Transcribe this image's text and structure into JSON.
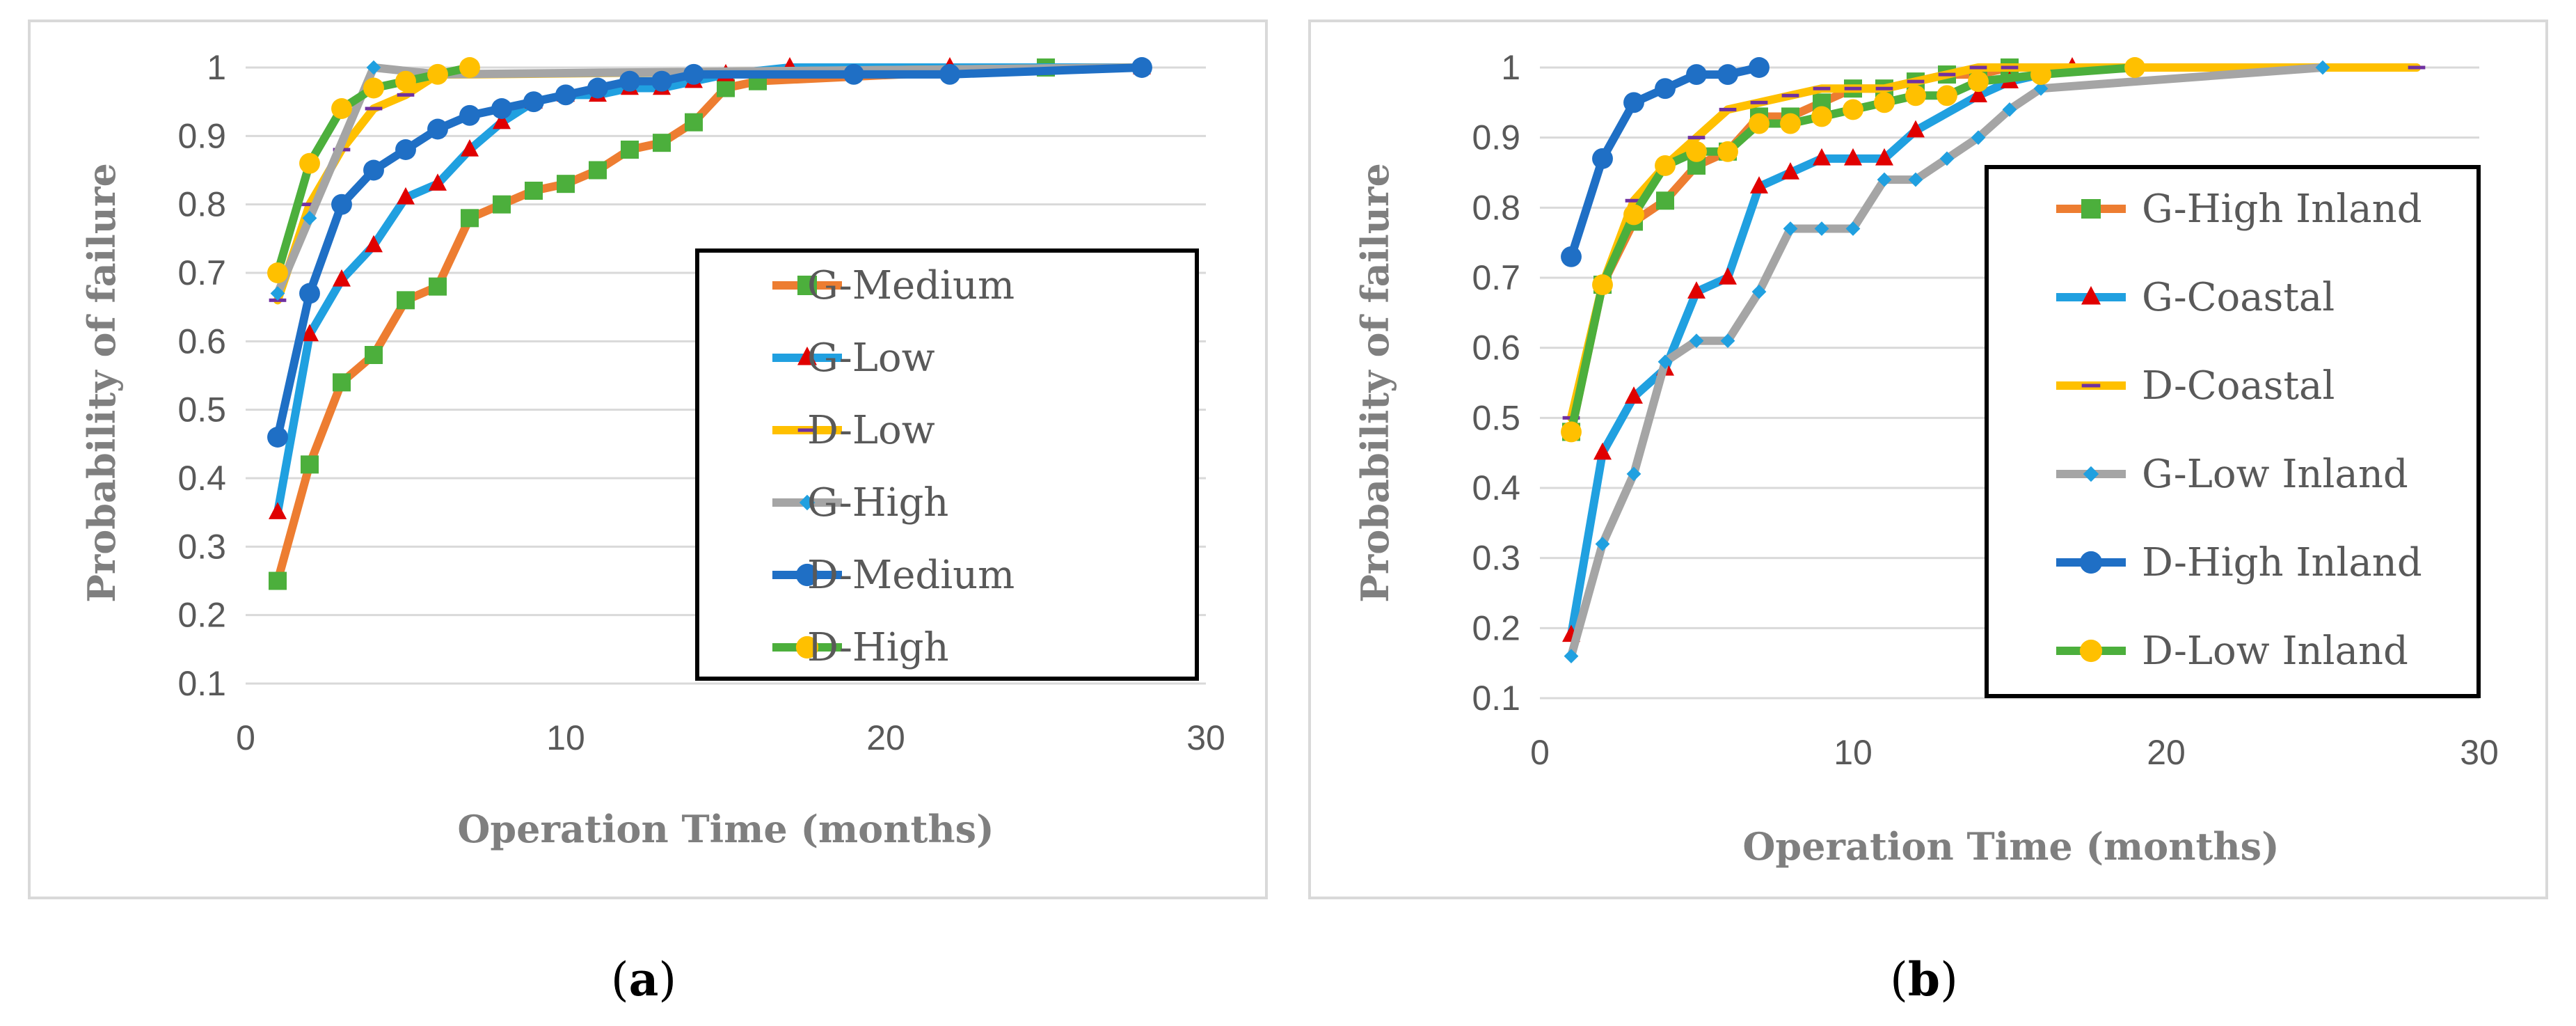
{
  "chart_data": [
    {
      "type": "line",
      "panel": "(a)",
      "panel_letter": "a",
      "xlabel": "Operation Time (months)",
      "ylabel": "Probability of failure",
      "xlim": [
        0,
        30
      ],
      "ylim": [
        0.1,
        1
      ],
      "xticks": [
        0,
        10,
        20,
        30
      ],
      "yticks": [
        0.1,
        0.2,
        0.3,
        0.4,
        0.5,
        0.6,
        0.7,
        0.8,
        0.9,
        1
      ],
      "ytick_labels": [
        "0.1",
        "0.2",
        "0.3",
        "0.4",
        "0.5",
        "0.6",
        "0.7",
        "0.8",
        "0.9",
        "1"
      ],
      "legend_position": "right",
      "series": [
        {
          "name": "G-Medium",
          "color": "#ED7D31",
          "marker": "square",
          "marker_color": "#4CAF3C",
          "x": [
            1,
            2,
            3,
            4,
            5,
            6,
            7,
            8,
            9,
            10,
            11,
            12,
            13,
            14,
            15,
            16,
            25
          ],
          "y": [
            0.25,
            0.42,
            0.54,
            0.58,
            0.66,
            0.68,
            0.78,
            0.8,
            0.82,
            0.83,
            0.85,
            0.88,
            0.89,
            0.92,
            0.97,
            0.98,
            1.0
          ]
        },
        {
          "name": "G-Low",
          "color": "#20A0E0",
          "marker": "triangle",
          "marker_color": "#E00000",
          "x": [
            1,
            2,
            3,
            4,
            5,
            6,
            7,
            8,
            9,
            10,
            11,
            12,
            13,
            14,
            15,
            17,
            22,
            28
          ],
          "y": [
            0.35,
            0.61,
            0.69,
            0.74,
            0.81,
            0.83,
            0.88,
            0.92,
            0.95,
            0.96,
            0.96,
            0.97,
            0.97,
            0.98,
            0.99,
            1.0,
            1.0,
            1.0
          ]
        },
        {
          "name": "D-Low",
          "color": "#FFC000",
          "marker": "dash",
          "marker_color": "#7030A0",
          "x": [
            1,
            2,
            3,
            4,
            5,
            6,
            7,
            28
          ],
          "y": [
            0.66,
            0.8,
            0.88,
            0.94,
            0.96,
            0.99,
            0.99,
            1.0
          ]
        },
        {
          "name": "G-High",
          "color": "#A5A5A5",
          "marker": "diamond",
          "marker_color": "#20A0E0",
          "x": [
            1,
            2,
            4,
            6,
            28
          ],
          "y": [
            0.67,
            0.78,
            1.0,
            0.99,
            1.0
          ]
        },
        {
          "name": "D-Medium",
          "color": "#1F6FC5",
          "marker": "circle",
          "marker_color": "#1F6FC5",
          "x": [
            1,
            2,
            3,
            4,
            5,
            6,
            7,
            8,
            9,
            10,
            11,
            12,
            13,
            14,
            19,
            22,
            28
          ],
          "y": [
            0.46,
            0.67,
            0.8,
            0.85,
            0.88,
            0.91,
            0.93,
            0.94,
            0.95,
            0.96,
            0.97,
            0.98,
            0.98,
            0.99,
            0.99,
            0.99,
            1.0
          ]
        },
        {
          "name": "D-High",
          "color": "#4CAF3C",
          "marker": "circle",
          "marker_color": "#FFC000",
          "x": [
            1,
            2,
            3,
            4,
            5,
            6,
            7
          ],
          "y": [
            0.7,
            0.86,
            0.94,
            0.97,
            0.98,
            0.99,
            1.0
          ]
        }
      ]
    },
    {
      "type": "line",
      "panel": "(b)",
      "panel_letter": "b",
      "xlabel": "Operation Time (months)",
      "ylabel": "Probability of failure",
      "xlim": [
        0,
        30
      ],
      "ylim": [
        0.1,
        1
      ],
      "xticks": [
        0,
        10,
        20,
        30
      ],
      "yticks": [
        0.1,
        0.2,
        0.3,
        0.4,
        0.5,
        0.6,
        0.7,
        0.8,
        0.9,
        1
      ],
      "ytick_labels": [
        "0.1",
        "0.2",
        "0.3",
        "0.4",
        "0.5",
        "0.6",
        "0.7",
        "0.8",
        "0.9",
        "1"
      ],
      "legend_position": "right",
      "series": [
        {
          "name": "G-High Inland",
          "color": "#ED7D31",
          "marker": "square",
          "marker_color": "#4CAF3C",
          "x": [
            1,
            2,
            3,
            4,
            5,
            6,
            7,
            8,
            9,
            10,
            11,
            12,
            13,
            14,
            15
          ],
          "y": [
            0.48,
            0.69,
            0.78,
            0.81,
            0.86,
            0.88,
            0.93,
            0.93,
            0.95,
            0.97,
            0.97,
            0.98,
            0.99,
            0.99,
            1.0
          ]
        },
        {
          "name": "G-Coastal",
          "color": "#20A0E0",
          "marker": "triangle",
          "marker_color": "#E00000",
          "x": [
            1,
            2,
            3,
            4,
            5,
            6,
            7,
            8,
            9,
            10,
            11,
            12,
            14,
            15,
            17
          ],
          "y": [
            0.19,
            0.45,
            0.53,
            0.57,
            0.68,
            0.7,
            0.83,
            0.85,
            0.87,
            0.87,
            0.87,
            0.91,
            0.96,
            0.98,
            1.0
          ]
        },
        {
          "name": "D-Coastal",
          "color": "#FFC000",
          "marker": "dash",
          "marker_color": "#7030A0",
          "x": [
            1,
            2,
            3,
            4,
            5,
            6,
            7,
            8,
            9,
            10,
            11,
            12,
            13,
            14,
            15,
            28
          ],
          "y": [
            0.5,
            0.69,
            0.81,
            0.86,
            0.9,
            0.94,
            0.95,
            0.96,
            0.97,
            0.97,
            0.97,
            0.98,
            0.99,
            1.0,
            1.0,
            1.0
          ]
        },
        {
          "name": "G-Low Inland",
          "color": "#A5A5A5",
          "marker": "diamond",
          "marker_color": "#20A0E0",
          "x": [
            1,
            2,
            3,
            4,
            5,
            6,
            7,
            8,
            9,
            10,
            11,
            12,
            13,
            14,
            15,
            16,
            25
          ],
          "y": [
            0.16,
            0.32,
            0.42,
            0.58,
            0.61,
            0.61,
            0.68,
            0.77,
            0.77,
            0.77,
            0.84,
            0.84,
            0.87,
            0.9,
            0.94,
            0.97,
            1.0
          ]
        },
        {
          "name": "D-High Inland",
          "color": "#1F6FC5",
          "marker": "circle",
          "marker_color": "#1F6FC5",
          "x": [
            1,
            2,
            3,
            4,
            5,
            6,
            7
          ],
          "y": [
            0.73,
            0.87,
            0.95,
            0.97,
            0.99,
            0.99,
            1.0
          ]
        },
        {
          "name": "D-Low Inland",
          "color": "#4CAF3C",
          "marker": "circle",
          "marker_color": "#FFC000",
          "x": [
            1,
            2,
            3,
            4,
            5,
            6,
            7,
            8,
            9,
            10,
            11,
            12,
            13,
            14,
            16,
            19
          ],
          "y": [
            0.48,
            0.69,
            0.79,
            0.86,
            0.88,
            0.88,
            0.92,
            0.92,
            0.93,
            0.94,
            0.95,
            0.96,
            0.96,
            0.98,
            0.99,
            1.0
          ]
        }
      ]
    }
  ]
}
